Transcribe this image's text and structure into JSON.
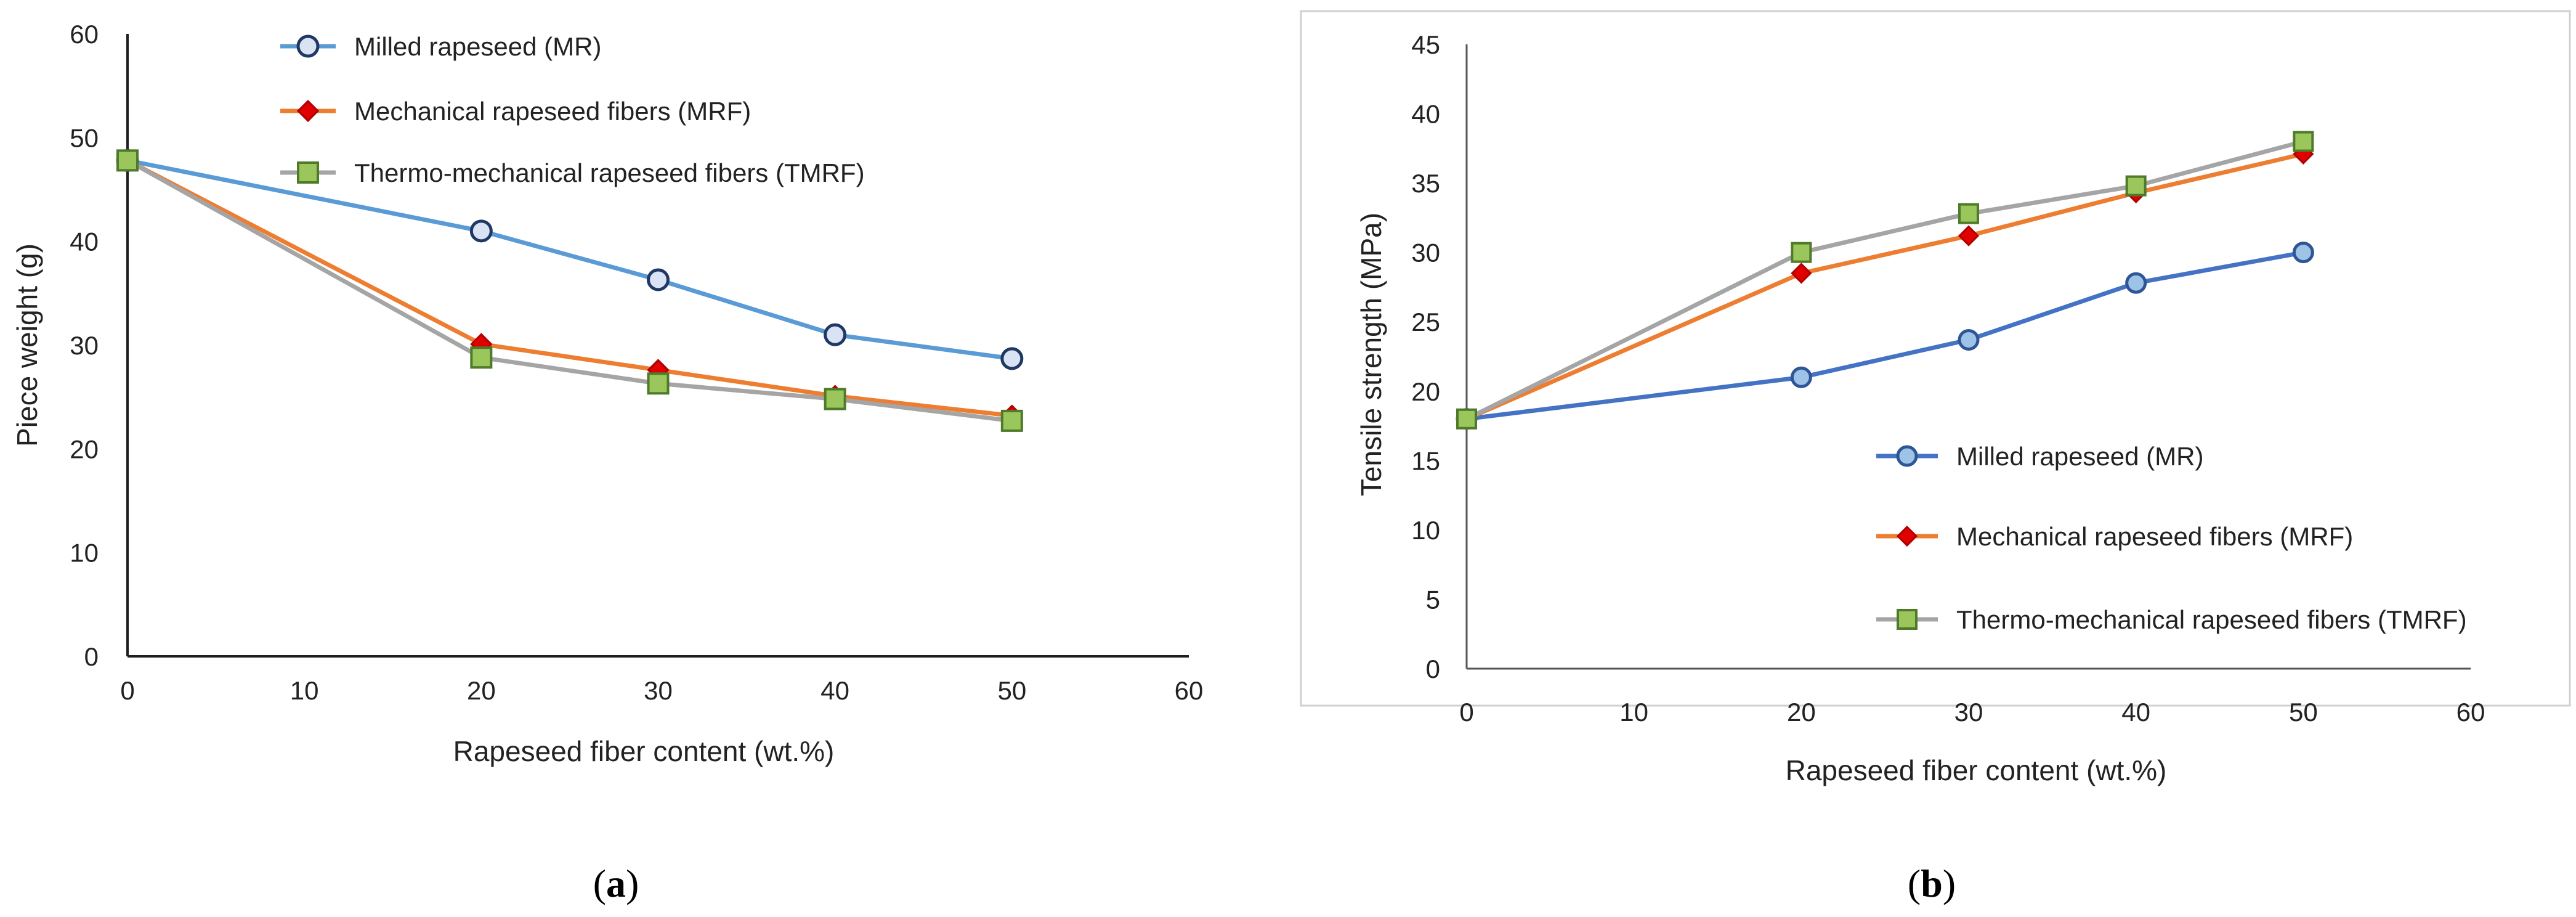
{
  "chart_data": [
    {
      "type": "line",
      "panel_label": "a",
      "title": "",
      "xlabel": "Rapeseed fiber content (wt.%)",
      "ylabel": "Piece weight (g)",
      "xlim": [
        0,
        60
      ],
      "ylim": [
        0,
        60
      ],
      "xticks": [
        0,
        10,
        20,
        30,
        40,
        50,
        60
      ],
      "yticks": [
        0,
        10,
        20,
        30,
        40,
        50,
        60
      ],
      "grid": false,
      "legend_position": "top-center",
      "series": [
        {
          "name": "Milled rapeseed (MR)",
          "color": "#5B9BD5",
          "marker": "circle",
          "marker_fill": "#DAE3F3",
          "marker_stroke": "#1F3864",
          "x": [
            0,
            20,
            30,
            40,
            50
          ],
          "y": [
            47.8,
            41.0,
            36.3,
            31.0,
            28.7
          ]
        },
        {
          "name": "Mechanical rapeseed fibers (MRF)",
          "color": "#ED7D31",
          "marker": "diamond",
          "marker_fill": "#E00000",
          "marker_stroke": "#B00000",
          "x": [
            0,
            20,
            30,
            40,
            50
          ],
          "y": [
            47.8,
            30.1,
            27.6,
            25.1,
            23.2
          ]
        },
        {
          "name": "Thermo-mechanical rapeseed fibers (TMRF)",
          "color": "#A5A5A5",
          "marker": "square",
          "marker_fill": "#9BC65B",
          "marker_stroke": "#4E7A2A",
          "x": [
            0,
            20,
            30,
            40,
            50
          ],
          "y": [
            47.8,
            28.8,
            26.3,
            24.8,
            22.7
          ]
        }
      ]
    },
    {
      "type": "line",
      "panel_label": "b",
      "title": "",
      "xlabel": "Rapeseed fiber content (wt.%)",
      "ylabel": "Tensile strength (MPa)",
      "xlim": [
        0,
        60
      ],
      "ylim": [
        0,
        45
      ],
      "xticks": [
        0,
        10,
        20,
        30,
        40,
        50,
        60
      ],
      "yticks": [
        0,
        5,
        10,
        15,
        20,
        25,
        30,
        35,
        40,
        45
      ],
      "grid": false,
      "legend_position": "center-right",
      "series": [
        {
          "name": "Milled rapeseed (MR)",
          "color": "#4472C4",
          "marker": "circle",
          "marker_fill": "#9DC3E6",
          "marker_stroke": "#2F5597",
          "x": [
            0,
            20,
            30,
            40,
            50
          ],
          "y": [
            18.0,
            21.0,
            23.7,
            27.8,
            30.0
          ]
        },
        {
          "name": "Mechanical rapeseed fibers (MRF)",
          "color": "#ED7D31",
          "marker": "diamond",
          "marker_fill": "#E00000",
          "marker_stroke": "#B00000",
          "x": [
            0,
            20,
            30,
            40,
            50
          ],
          "y": [
            18.0,
            28.5,
            31.2,
            34.3,
            37.1
          ]
        },
        {
          "name": "Thermo-mechanical rapeseed fibers (TMRF)",
          "color": "#A5A5A5",
          "marker": "square",
          "marker_fill": "#9BC65B",
          "marker_stroke": "#4E7A2A",
          "x": [
            0,
            20,
            30,
            40,
            50
          ],
          "y": [
            18.0,
            30.0,
            32.8,
            34.8,
            38.0
          ]
        }
      ]
    }
  ]
}
